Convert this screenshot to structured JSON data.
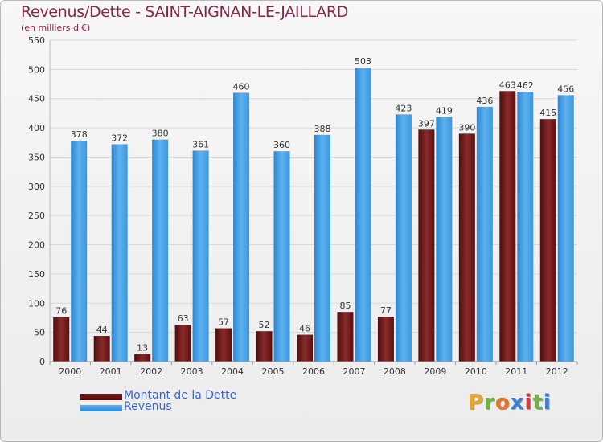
{
  "header": {
    "title": "Revenus/Dette - SAINT-AIGNAN-LE-JAILLARD",
    "subtitle": "(en milliers d'€)"
  },
  "brand": {
    "letters": [
      "P",
      "r",
      "o",
      "x",
      "i",
      "t",
      "i"
    ],
    "colors": [
      "#e8a52c",
      "#6fb43f",
      "#e8742c",
      "#3b7fd0",
      "#d93a3a",
      "#6fb43f",
      "#3b7fd0"
    ]
  },
  "colors": {
    "debt": "#7b1a1a",
    "revenue": "#4aa3e8",
    "grid": "#d9d9d9",
    "axis_text": "#333333"
  },
  "chart_data": {
    "type": "bar",
    "title": "Revenus/Dette - SAINT-AIGNAN-LE-JAILLARD",
    "subtitle": "(en milliers d'€)",
    "categories": [
      "2000",
      "2001",
      "2002",
      "2003",
      "2004",
      "2005",
      "2006",
      "2007",
      "2008",
      "2009",
      "2010",
      "2011",
      "2012"
    ],
    "series": [
      {
        "name": "Montant de la Dette",
        "values": [
          76,
          44,
          13,
          63,
          57,
          52,
          46,
          85,
          77,
          397,
          390,
          463,
          415
        ]
      },
      {
        "name": "Revenus",
        "values": [
          378,
          372,
          380,
          361,
          460,
          360,
          388,
          503,
          423,
          419,
          436,
          462,
          456
        ]
      }
    ],
    "ylim": [
      0,
      550
    ],
    "yticks": [
      0,
      50,
      100,
      150,
      200,
      250,
      300,
      350,
      400,
      450,
      500,
      550
    ],
    "grid": true,
    "legend_position": "bottom-left"
  }
}
